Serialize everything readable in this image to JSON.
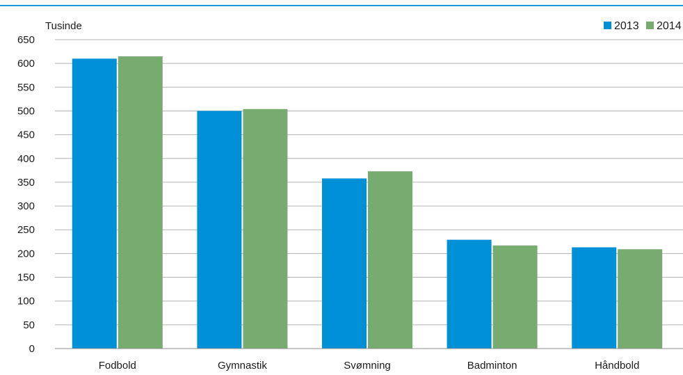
{
  "chart_data": {
    "type": "bar",
    "unit_label": "Tusinde",
    "categories": [
      "Fodbold",
      "Gymnastik",
      "Svømning",
      "Badminton",
      "Håndbold"
    ],
    "series": [
      {
        "name": "2013",
        "color": "#0090d7",
        "values": [
          610,
          500,
          358,
          229,
          213
        ]
      },
      {
        "name": "2014",
        "color": "#77ab70",
        "values": [
          615,
          504,
          373,
          217,
          209
        ]
      }
    ],
    "ylim": [
      0,
      650
    ],
    "yticks": [
      0,
      50,
      100,
      150,
      200,
      250,
      300,
      350,
      400,
      450,
      500,
      550,
      600,
      650
    ],
    "grid": true,
    "legend_position": "top-right",
    "accent_line_color": "#1a9bd7"
  }
}
